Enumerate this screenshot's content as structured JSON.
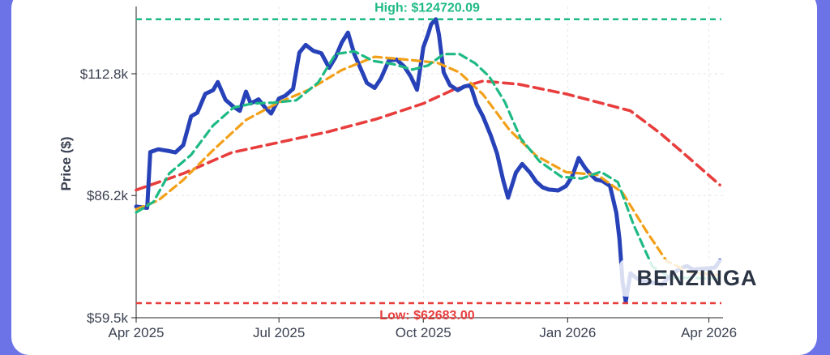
{
  "chart_data": {
    "type": "line",
    "ylabel": "Price ($)",
    "y_ticks": [
      "$112.8k",
      "$86.2k",
      "$59.5k"
    ],
    "y_tick_values": [
      112800,
      86200,
      59500
    ],
    "x_ticks": [
      "Apr 2025",
      "Jul 2025",
      "Oct 2025",
      "Jan 2026",
      "Apr 2026"
    ],
    "x_tick_dates": [
      "2025-04-01",
      "2025-07-01",
      "2025-10-01",
      "2026-01-01",
      "2026-04-01"
    ],
    "ylim": [
      59500,
      127500
    ],
    "xlim": [
      "2025-04-01",
      "2026-04-10"
    ],
    "grid": true,
    "annotations": {
      "high_label": "High: $124720.09",
      "high_value": 124720.09,
      "low_label": "Low: $62683.00",
      "low_value": 62683.0
    },
    "series": [
      {
        "style": "price",
        "color": "#2742b8",
        "x": [
          "2025-04-01",
          "2025-04-08",
          "2025-04-10",
          "2025-04-15",
          "2025-04-22",
          "2025-04-26",
          "2025-05-01",
          "2025-05-06",
          "2025-05-10",
          "2025-05-15",
          "2025-05-20",
          "2025-05-23",
          "2025-05-28",
          "2025-06-02",
          "2025-06-06",
          "2025-06-10",
          "2025-06-13",
          "2025-06-18",
          "2025-06-22",
          "2025-06-26",
          "2025-07-01",
          "2025-07-05",
          "2025-07-10",
          "2025-07-14",
          "2025-07-18",
          "2025-07-23",
          "2025-07-28",
          "2025-08-02",
          "2025-08-06",
          "2025-08-10",
          "2025-08-14",
          "2025-08-18",
          "2025-08-22",
          "2025-08-26",
          "2025-08-31",
          "2025-09-04",
          "2025-09-09",
          "2025-09-14",
          "2025-09-19",
          "2025-09-23",
          "2025-09-27",
          "2025-10-01",
          "2025-10-04",
          "2025-10-06",
          "2025-10-09",
          "2025-10-11",
          "2025-10-14",
          "2025-10-18",
          "2025-10-23",
          "2025-10-27",
          "2025-10-31",
          "2025-11-04",
          "2025-11-08",
          "2025-11-13",
          "2025-11-17",
          "2025-11-21",
          "2025-11-24",
          "2025-11-29",
          "2025-12-03",
          "2025-12-08",
          "2025-12-12",
          "2025-12-16",
          "2025-12-20",
          "2025-12-26",
          "2025-12-31",
          "2026-01-04",
          "2026-01-08",
          "2026-01-12",
          "2026-01-15",
          "2026-01-19",
          "2026-01-23",
          "2026-01-28",
          "2026-02-01",
          "2026-02-03",
          "2026-02-05",
          "2026-02-07",
          "2026-02-10",
          "2026-02-14",
          "2026-02-18",
          "2026-02-22",
          "2026-02-26",
          "2026-03-02",
          "2026-03-06",
          "2026-03-10",
          "2026-03-14",
          "2026-03-18",
          "2026-03-22",
          "2026-03-27",
          "2026-04-01",
          "2026-04-05",
          "2026-04-08"
        ],
        "y": [
          83800,
          83500,
          95700,
          96300,
          95900,
          95600,
          97200,
          103500,
          104300,
          108400,
          109200,
          111000,
          107100,
          105600,
          104700,
          108900,
          106300,
          107200,
          105500,
          104100,
          107400,
          108000,
          109500,
          117400,
          119100,
          117800,
          117300,
          114100,
          116400,
          119600,
          121800,
          117100,
          114000,
          110800,
          109700,
          111800,
          115700,
          115900,
          114300,
          112200,
          109300,
          118600,
          121400,
          123600,
          124700,
          121300,
          113100,
          110300,
          109200,
          110000,
          110300,
          106100,
          103500,
          99300,
          95400,
          89400,
          85700,
          91200,
          93100,
          91200,
          89200,
          88000,
          87500,
          87300,
          88300,
          90500,
          94400,
          92300,
          91000,
          89700,
          89400,
          88300,
          82400,
          76800,
          67300,
          63000,
          69200,
          68100,
          67600,
          67200,
          67100,
          66700,
          68100,
          69400,
          70300,
          70800,
          70000,
          70200,
          70300,
          70500,
          72000
        ]
      },
      {
        "style": "short_ma",
        "color": "#1fba84",
        "x": [
          "2025-04-01",
          "2025-04-12",
          "2025-04-22",
          "2025-05-06",
          "2025-05-20",
          "2025-06-02",
          "2025-06-14",
          "2025-06-28",
          "2025-07-12",
          "2025-07-26",
          "2025-08-06",
          "2025-08-18",
          "2025-08-30",
          "2025-09-12",
          "2025-09-24",
          "2025-10-04",
          "2025-10-14",
          "2025-10-24",
          "2025-11-03",
          "2025-11-12",
          "2025-11-22",
          "2025-12-02",
          "2025-12-14",
          "2025-12-28",
          "2026-01-10",
          "2026-01-22",
          "2026-02-02",
          "2026-02-12",
          "2026-02-24",
          "2026-03-08",
          "2026-03-20",
          "2026-04-08"
        ],
        "y": [
          82500,
          84800,
          91000,
          95100,
          101500,
          105400,
          106300,
          106500,
          107000,
          110900,
          117100,
          117700,
          115600,
          114900,
          113700,
          114600,
          117100,
          117100,
          115100,
          112200,
          106600,
          98700,
          93700,
          90300,
          89900,
          91400,
          89100,
          79800,
          70700,
          68200,
          68200,
          68000
        ]
      },
      {
        "style": "medium_ma",
        "color": "#f2a019",
        "x": [
          "2025-04-01",
          "2025-04-15",
          "2025-05-01",
          "2025-05-20",
          "2025-06-10",
          "2025-06-30",
          "2025-07-20",
          "2025-08-10",
          "2025-08-31",
          "2025-09-20",
          "2025-10-10",
          "2025-10-24",
          "2025-11-08",
          "2025-11-25",
          "2025-12-12",
          "2025-12-31",
          "2026-01-20",
          "2026-02-05",
          "2026-02-20",
          "2026-03-05",
          "2026-03-20",
          "2026-04-08"
        ],
        "y": [
          83200,
          85100,
          89600,
          96100,
          102700,
          106400,
          109300,
          113600,
          116500,
          115900,
          115200,
          113100,
          108300,
          100500,
          94900,
          91300,
          90700,
          86800,
          78500,
          71900,
          69400,
          68800
        ]
      },
      {
        "style": "long_ma",
        "color": "#e83d3d",
        "x": [
          "2025-04-01",
          "2025-05-01",
          "2025-06-01",
          "2025-07-01",
          "2025-08-01",
          "2025-09-01",
          "2025-10-01",
          "2025-10-20",
          "2025-11-08",
          "2025-12-01",
          "2025-12-31",
          "2026-01-20",
          "2026-02-10",
          "2026-03-01",
          "2026-03-20",
          "2026-04-08"
        ],
        "y": [
          87400,
          91000,
          95600,
          97800,
          100100,
          102900,
          106300,
          109300,
          111200,
          110500,
          108400,
          106600,
          104700,
          99800,
          94200,
          88500
        ]
      }
    ]
  },
  "watermark": "BENZINGA"
}
